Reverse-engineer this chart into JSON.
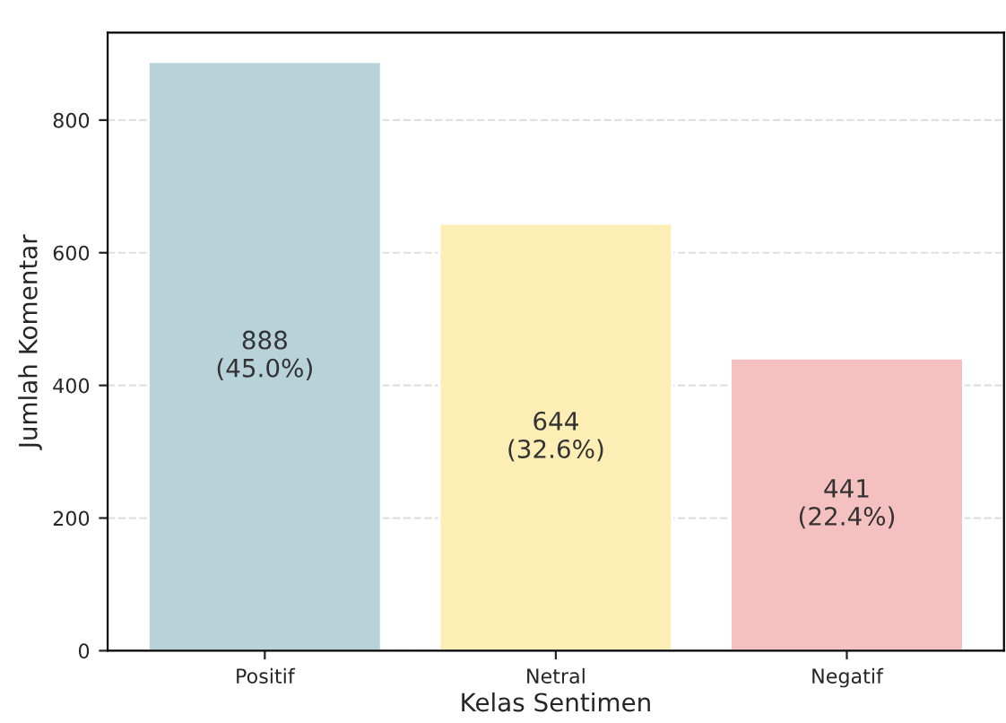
{
  "chart_data": {
    "type": "bar",
    "xlabel": "Kelas Sentimen",
    "ylabel": "Jumlah Komentar",
    "categories": [
      "Positif",
      "Netral",
      "Negatif"
    ],
    "values": [
      888,
      644,
      441
    ],
    "colors": [
      "#b8d2da",
      "#fdeeb5",
      "#f4c0c0"
    ],
    "value_labels": [
      "888\n(45.0%)",
      "644\n(32.6%)",
      "441\n(22.4%)"
    ],
    "ylim": [
      0,
      932
    ],
    "yticks": [
      0,
      200,
      400,
      600,
      800
    ],
    "grid": "y"
  }
}
